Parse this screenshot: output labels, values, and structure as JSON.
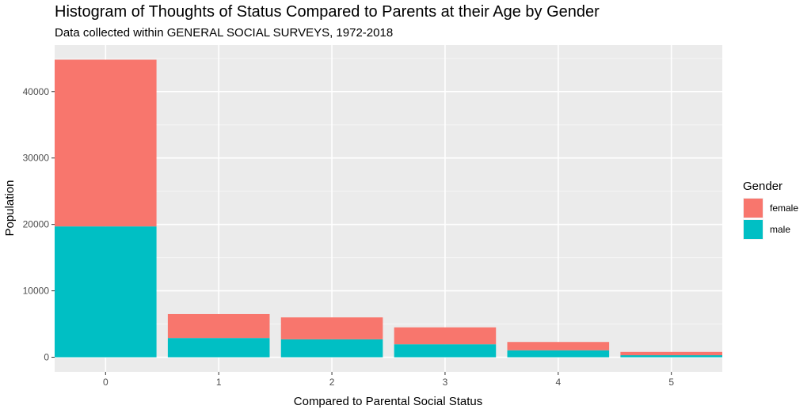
{
  "chart_data": {
    "type": "bar",
    "stacked": true,
    "title": "Histogram of Thoughts of Status Compared to Parents at their Age by Gender",
    "subtitle": "Data collected within GENERAL SOCIAL SURVEYS, 1972-2018",
    "xlabel": "Compared to Parental Social Status",
    "ylabel": "Population",
    "categories": [
      "0",
      "1",
      "2",
      "3",
      "4",
      "5"
    ],
    "series": [
      {
        "name": "male",
        "values": [
          19700,
          2900,
          2700,
          1950,
          1050,
          300
        ],
        "color": "#00BFC4"
      },
      {
        "name": "female",
        "values": [
          25100,
          3600,
          3300,
          2550,
          1250,
          500
        ],
        "color": "#F8766D"
      }
    ],
    "ylim": [
      -2200,
      47000
    ],
    "yticks": [
      0,
      10000,
      20000,
      30000,
      40000
    ],
    "ytick_labels": [
      "0",
      "10000",
      "20000",
      "30000",
      "40000"
    ],
    "grid": true,
    "panel_background": "#EBEBEB",
    "legend": {
      "title": "Gender",
      "position": "right",
      "entries": [
        "female",
        "male"
      ]
    }
  }
}
